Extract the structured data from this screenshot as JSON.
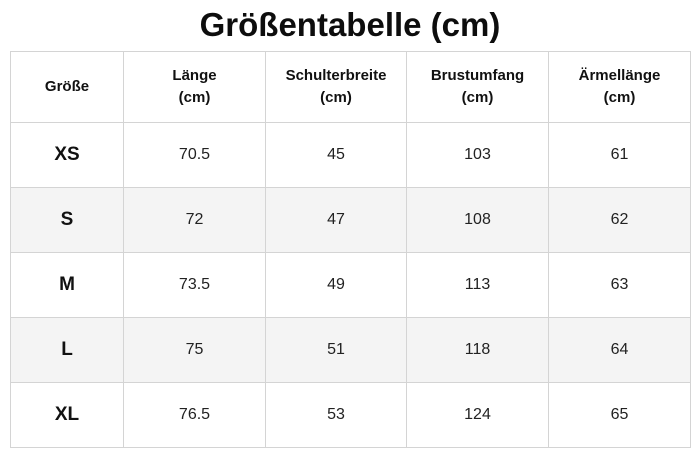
{
  "title": "Größentabelle (cm)",
  "columns": [
    {
      "label": "Größe",
      "unit": ""
    },
    {
      "label": "Länge",
      "unit": "(cm)"
    },
    {
      "label": "Schulterbreite",
      "unit": "(cm)"
    },
    {
      "label": "Brustumfang",
      "unit": "(cm)"
    },
    {
      "label": "Ärmellänge",
      "unit": "(cm)"
    }
  ],
  "rows": [
    {
      "size": "XS",
      "laenge": "70.5",
      "schulterbreite": "45",
      "brustumfang": "103",
      "aermellaenge": "61"
    },
    {
      "size": "S",
      "laenge": "72",
      "schulterbreite": "47",
      "brustumfang": "108",
      "aermellaenge": "62"
    },
    {
      "size": "M",
      "laenge": "73.5",
      "schulterbreite": "49",
      "brustumfang": "113",
      "aermellaenge": "63"
    },
    {
      "size": "L",
      "laenge": "75",
      "schulterbreite": "51",
      "brustumfang": "118",
      "aermellaenge": "64"
    },
    {
      "size": "XL",
      "laenge": "76.5",
      "schulterbreite": "53",
      "brustumfang": "124",
      "aermellaenge": "65"
    }
  ],
  "colors": {
    "border": "#d4d4d4",
    "row_alt": "#f4f4f4",
    "text": "#111111"
  }
}
